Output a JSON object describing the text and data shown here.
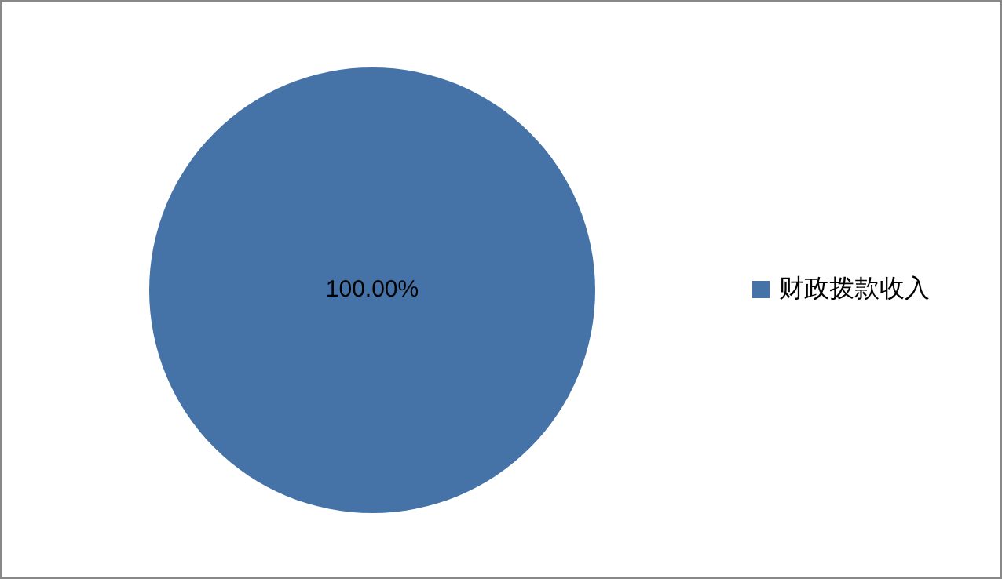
{
  "chart_data": {
    "type": "pie",
    "categories": [
      "财政拨款收入"
    ],
    "values": [
      100
    ],
    "colors": [
      "#4572a7"
    ],
    "value_labels": [
      "100.00%"
    ],
    "legend": "right"
  }
}
